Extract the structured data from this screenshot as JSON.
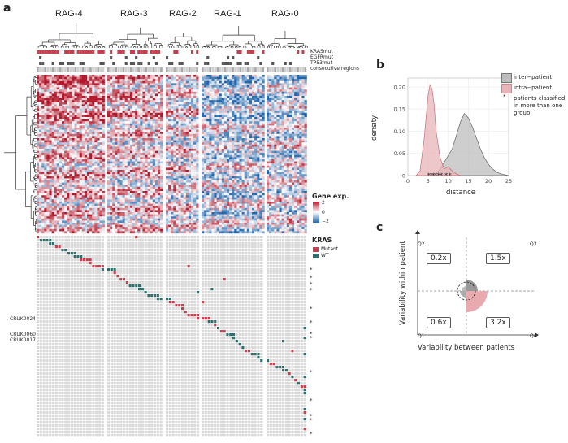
{
  "panel_a": {
    "label": "a",
    "groups": [
      "RAG-4",
      "RAG-3",
      "RAG-2",
      "RAG-1",
      "RAG-0"
    ],
    "annotation_rows": [
      "KRASmut",
      "EGFRmut",
      "TP53mut",
      "consecutive regions"
    ],
    "legend_gene": {
      "title": "Gene exp.",
      "ticks": [
        "2",
        "0",
        "−2"
      ]
    },
    "legend_kras": {
      "title": "KRAS",
      "items": [
        "Mutant",
        "WT"
      ],
      "colors": [
        "#c4404f",
        "#2f6e6b"
      ]
    },
    "patients": [
      "CRUK0024",
      "CRUK0060",
      "CRUK0017"
    ],
    "star": "*"
  },
  "panel_b": {
    "label": "b",
    "chart_data": {
      "type": "area",
      "xlabel": "distance",
      "ylabel": "density",
      "x_ticks": [
        "0",
        "5",
        "10",
        "15",
        "20",
        "25"
      ],
      "y_ticks": [
        "0",
        "0.05",
        "0.10",
        "0.15",
        "0.20"
      ],
      "xlim": [
        0,
        25
      ],
      "ylim": [
        0,
        0.22
      ],
      "series": [
        {
          "name": "inter−patient",
          "color": "#bdbdbd",
          "x": [
            6,
            7,
            8,
            9,
            10,
            11,
            12,
            13,
            14,
            15,
            16,
            17,
            18,
            19,
            20,
            21,
            22,
            23,
            24,
            25
          ],
          "values": [
            0,
            0.005,
            0.015,
            0.03,
            0.045,
            0.06,
            0.09,
            0.12,
            0.14,
            0.13,
            0.11,
            0.085,
            0.06,
            0.04,
            0.025,
            0.015,
            0.008,
            0.004,
            0.002,
            0
          ]
        },
        {
          "name": "intra−patient",
          "color": "#e8b4b8",
          "x": [
            2,
            3,
            4,
            5,
            5.5,
            6,
            6.5,
            7,
            8,
            9,
            10,
            11,
            12,
            13
          ],
          "values": [
            0,
            0.01,
            0.08,
            0.18,
            0.205,
            0.195,
            0.16,
            0.1,
            0.04,
            0.015,
            0.02,
            0.01,
            0.004,
            0
          ]
        }
      ],
      "legend_extra": "patients classified in more than one group",
      "star_points_x": [
        5.2,
        5.8,
        6.3,
        6.9,
        7.6,
        8.3,
        9.5,
        10.4
      ]
    }
  },
  "panel_c": {
    "label": "c",
    "xlabel": "Variability between patients",
    "ylabel": "Variability within patient",
    "quadrants": [
      {
        "name": "Q2",
        "ratio": "0.2x"
      },
      {
        "name": "Q3",
        "ratio": "1.5x"
      },
      {
        "name": "Q1",
        "ratio": "0.6x"
      },
      {
        "name": "Q4",
        "ratio": "3.2x"
      }
    ]
  }
}
